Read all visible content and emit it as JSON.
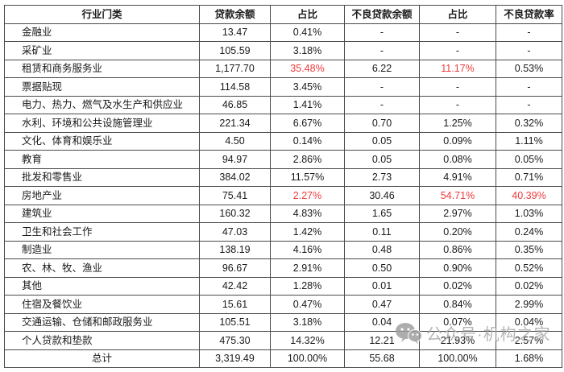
{
  "colors": {
    "red_highlight": "#ee3a3c",
    "text": "#1a1a1a",
    "border": "#4a4a4a",
    "watermark": "#a9a9a9"
  },
  "watermark": {
    "icon": "wechat-logo-icon",
    "text": "公众号·机构之家"
  },
  "chart_data": {
    "type": "table",
    "title": "",
    "headers": [
      "行业门类",
      "贷款余额",
      "占比",
      "不良贷款余额",
      "占比",
      "不良贷款率"
    ],
    "rows": [
      {
        "name": "金融业",
        "values": [
          "13.47",
          "0.41%",
          "-",
          "-",
          "-"
        ],
        "red": [
          false,
          false,
          false,
          false,
          false
        ]
      },
      {
        "name": "采矿业",
        "values": [
          "105.59",
          "3.18%",
          "-",
          "-",
          "-"
        ],
        "red": [
          false,
          false,
          false,
          false,
          false
        ]
      },
      {
        "name": "租赁和商务服务业",
        "values": [
          "1,177.70",
          "35.48%",
          "6.22",
          "11.17%",
          "0.53%"
        ],
        "red": [
          false,
          true,
          false,
          true,
          false
        ]
      },
      {
        "name": "票据贴现",
        "values": [
          "114.58",
          "3.45%",
          "-",
          "-",
          "-"
        ],
        "red": [
          false,
          false,
          false,
          false,
          false
        ]
      },
      {
        "name": "电力、热力、燃气及水生产和供应业",
        "values": [
          "46.85",
          "1.41%",
          "-",
          "-",
          "-"
        ],
        "red": [
          false,
          false,
          false,
          false,
          false
        ]
      },
      {
        "name": "水利、环境和公共设施管理业",
        "values": [
          "221.34",
          "6.67%",
          "0.70",
          "1.25%",
          "0.32%"
        ],
        "red": [
          false,
          false,
          false,
          false,
          false
        ]
      },
      {
        "name": "文化、体育和娱乐业",
        "values": [
          "4.50",
          "0.14%",
          "0.05",
          "0.09%",
          "1.11%"
        ],
        "red": [
          false,
          false,
          false,
          false,
          false
        ]
      },
      {
        "name": "教育",
        "values": [
          "94.97",
          "2.86%",
          "0.05",
          "0.08%",
          "0.05%"
        ],
        "red": [
          false,
          false,
          false,
          false,
          false
        ]
      },
      {
        "name": "批发和零售业",
        "values": [
          "384.02",
          "11.57%",
          "2.73",
          "4.91%",
          "0.71%"
        ],
        "red": [
          false,
          false,
          false,
          false,
          false
        ]
      },
      {
        "name": "房地产业",
        "values": [
          "75.41",
          "2.27%",
          "30.46",
          "54.71%",
          "40.39%"
        ],
        "red": [
          false,
          true,
          false,
          true,
          true
        ]
      },
      {
        "name": "建筑业",
        "values": [
          "160.32",
          "4.83%",
          "1.65",
          "2.97%",
          "1.03%"
        ],
        "red": [
          false,
          false,
          false,
          false,
          false
        ]
      },
      {
        "name": "卫生和社会工作",
        "values": [
          "47.03",
          "1.42%",
          "0.11",
          "0.20%",
          "0.24%"
        ],
        "red": [
          false,
          false,
          false,
          false,
          false
        ]
      },
      {
        "name": "制造业",
        "values": [
          "138.19",
          "4.16%",
          "0.48",
          "0.86%",
          "0.35%"
        ],
        "red": [
          false,
          false,
          false,
          false,
          false
        ]
      },
      {
        "name": "农、林、牧、渔业",
        "values": [
          "96.67",
          "2.91%",
          "0.50",
          "0.90%",
          "0.52%"
        ],
        "red": [
          false,
          false,
          false,
          false,
          false
        ]
      },
      {
        "name": "其他",
        "values": [
          "42.42",
          "1.28%",
          "0.01",
          "0.02%",
          "0.02%"
        ],
        "red": [
          false,
          false,
          false,
          false,
          false
        ]
      },
      {
        "name": "住宿及餐饮业",
        "values": [
          "15.61",
          "0.47%",
          "0.47",
          "0.84%",
          "2.99%"
        ],
        "red": [
          false,
          false,
          false,
          false,
          false
        ]
      },
      {
        "name": "交通运输、仓储和邮政服务业",
        "values": [
          "105.51",
          "3.18%",
          "0.04",
          "0.07%",
          "0.04%"
        ],
        "red": [
          false,
          false,
          false,
          false,
          false
        ]
      },
      {
        "name": "个人贷款和垫款",
        "values": [
          "475.30",
          "14.32%",
          "12.21",
          "21.93%",
          "2.57%"
        ],
        "red": [
          false,
          false,
          false,
          false,
          false
        ]
      },
      {
        "name": "总计",
        "values": [
          "3,319.49",
          "100.00%",
          "55.68",
          "100.00%",
          "1.68%"
        ],
        "red": [
          false,
          false,
          false,
          false,
          false
        ],
        "is_total": true
      }
    ]
  }
}
